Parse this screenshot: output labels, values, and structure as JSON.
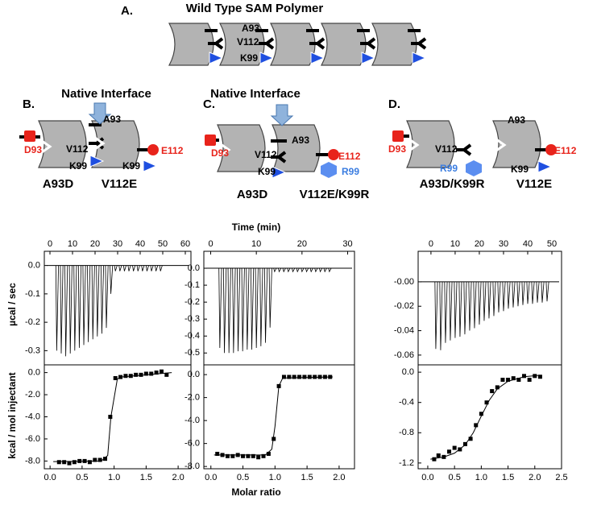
{
  "figure": {
    "a": {
      "label": "A.",
      "title": "Wild Type SAM Polymer",
      "residues": [
        "A93",
        "V112",
        "K99"
      ]
    },
    "b": {
      "label": "B.",
      "header": "Native Interface",
      "residues": [
        "D93",
        "A93",
        "V112",
        "K99",
        "K99",
        "E112"
      ],
      "names": [
        "A93D",
        "V112E"
      ]
    },
    "c": {
      "label": "C.",
      "header": "Native Interface",
      "residues": [
        "D93",
        "A93",
        "V112",
        "K99",
        "E112",
        "R99"
      ],
      "names": [
        "A93D",
        "V112E/K99R"
      ]
    },
    "d": {
      "label": "D.",
      "residues": [
        "D93",
        "V112",
        "R99",
        "A93",
        "K99",
        "E112"
      ],
      "names": [
        "A93D/K99R",
        "V112E"
      ]
    }
  },
  "axis_titles": {
    "time": "Time (min)",
    "power": "µcal / sec",
    "heat": "kcal / mol injectant",
    "ratio": "Molar ratio"
  },
  "chart_data": [
    {
      "type": "thermogram",
      "color": "#000000",
      "xaxis_position": "top",
      "x": [
        3,
        5,
        7,
        9,
        11,
        13,
        15,
        17,
        19,
        21,
        23,
        25,
        27,
        29,
        31,
        33,
        35,
        37,
        39,
        41,
        43,
        45,
        47,
        49
      ],
      "values": [
        -0.3,
        -0.31,
        -0.32,
        -0.31,
        -0.3,
        -0.29,
        -0.28,
        -0.27,
        -0.26,
        -0.25,
        -0.24,
        -0.22,
        -0.1,
        -0.02,
        -0.02,
        -0.02,
        -0.02,
        -0.02,
        -0.02,
        -0.02,
        -0.02,
        -0.02,
        -0.02,
        -0.02
      ],
      "xlim": [
        -2.5,
        62.5
      ],
      "xticks": [
        0,
        10,
        20,
        30,
        40,
        50,
        60
      ],
      "ylim": [
        -0.35,
        0.05
      ],
      "yticks": [
        {
          "value": 0,
          "label": "0.0"
        },
        -0.1,
        -0.2,
        -0.3
      ]
    },
    {
      "type": "thermogram",
      "color": "#000000",
      "xaxis_position": "top",
      "x": [
        2,
        3,
        4,
        5,
        6,
        7,
        8,
        9,
        10,
        11,
        12,
        13,
        14,
        15,
        16,
        17,
        18,
        19,
        20,
        21,
        22,
        23,
        24,
        25,
        26
      ],
      "values": [
        -0.47,
        -0.5,
        -0.5,
        -0.5,
        -0.49,
        -0.49,
        -0.48,
        -0.48,
        -0.47,
        -0.46,
        -0.44,
        -0.35,
        -0.02,
        -0.02,
        -0.02,
        -0.02,
        -0.02,
        -0.02,
        -0.02,
        -0.02,
        -0.02,
        -0.02,
        -0.02,
        -0.02,
        -0.02
      ],
      "xlim": [
        -1.5,
        31.5
      ],
      "xticks": [
        0,
        10,
        20,
        30
      ],
      "ylim": [
        -0.57,
        0.1
      ],
      "yticks": [
        {
          "value": 0,
          "label": "0.0"
        },
        -0.1,
        -0.2,
        -0.3,
        -0.4,
        -0.5
      ]
    },
    {
      "type": "thermogram",
      "color": "#000000",
      "xaxis_position": "top",
      "x": [
        2,
        4,
        6,
        8,
        10,
        12,
        14,
        16,
        18,
        20,
        22,
        24,
        26,
        28,
        30,
        32,
        34,
        36,
        38,
        40,
        42,
        44,
        46,
        48
      ],
      "values": [
        -0.055,
        -0.056,
        -0.05,
        -0.048,
        -0.046,
        -0.045,
        -0.043,
        -0.04,
        -0.038,
        -0.035,
        -0.032,
        -0.03,
        -0.028,
        -0.025,
        -0.024,
        -0.022,
        -0.021,
        -0.02,
        -0.019,
        -0.018,
        -0.018,
        -0.017,
        -0.017,
        -0.016
      ],
      "xlim": [
        -5.3,
        54
      ],
      "xticks": [
        0,
        10,
        20,
        30,
        40,
        50
      ],
      "ylim": [
        -0.068,
        0.025
      ],
      "yticks": [
        {
          "value": 0,
          "label": "-0.00"
        },
        -0.02,
        -0.04,
        -0.06
      ]
    },
    {
      "type": "scatter",
      "xaxis_position": "bottom",
      "series": [
        {
          "marker": "square",
          "color": "#000000",
          "x": [
            0.14,
            0.22,
            0.3,
            0.38,
            0.46,
            0.54,
            0.62,
            0.7,
            0.78,
            0.86,
            0.94,
            1.02,
            1.1,
            1.18,
            1.26,
            1.34,
            1.42,
            1.5,
            1.58,
            1.66,
            1.74,
            1.82
          ],
          "values": [
            -8.1,
            -8.1,
            -8.2,
            -8.1,
            -8.0,
            -8.0,
            -8.1,
            -7.9,
            -7.9,
            -7.8,
            -4.0,
            -0.5,
            -0.4,
            -0.3,
            -0.3,
            -0.2,
            -0.2,
            -0.1,
            -0.1,
            0,
            0.1,
            -0.2
          ]
        },
        {
          "marker": "none",
          "color": "#000000",
          "x": [
            0.05,
            0.8,
            0.9,
            0.95,
            1.05,
            1.1,
            1.9
          ],
          "values": [
            -8.05,
            -8.0,
            -7.5,
            -4.0,
            -0.6,
            -0.4,
            0
          ]
        }
      ],
      "xlim": [
        -0.09,
        2.2
      ],
      "xticks": [
        {
          "value": 0,
          "label": "0.0"
        },
        0.5,
        {
          "value": 1,
          "label": "1.0"
        },
        1.5,
        {
          "value": 2,
          "label": "2.0"
        }
      ],
      "ylim": [
        -8.7,
        0.7
      ],
      "yticks": [
        {
          "value": 0,
          "label": "0.0"
        },
        {
          "value": -2,
          "label": "-2.0"
        },
        {
          "value": -4,
          "label": "-4.0"
        },
        {
          "value": -6,
          "label": "-6.0"
        },
        {
          "value": -8,
          "label": "-8.0"
        }
      ]
    },
    {
      "type": "scatter",
      "xaxis_position": "bottom",
      "series": [
        {
          "marker": "square",
          "color": "#000000",
          "x": [
            0.1,
            0.18,
            0.26,
            0.34,
            0.42,
            0.5,
            0.58,
            0.66,
            0.74,
            0.82,
            0.9,
            0.98,
            1.06,
            1.14,
            1.22,
            1.3,
            1.38,
            1.46,
            1.54,
            1.62,
            1.7,
            1.78,
            1.86
          ],
          "values": [
            -6.9,
            -7.0,
            -7.1,
            -7.1,
            -7.0,
            -7.1,
            -7.1,
            -7.1,
            -7.2,
            -7.1,
            -6.9,
            -5.6,
            -1.0,
            -0.2,
            -0.2,
            -0.2,
            -0.2,
            -0.2,
            -0.2,
            -0.2,
            -0.2,
            -0.2,
            -0.2
          ]
        },
        {
          "marker": "none",
          "color": "#000000",
          "x": [
            0.05,
            0.85,
            0.95,
            1.0,
            1.06,
            1.12,
            1.9
          ],
          "values": [
            -7.0,
            -7.0,
            -6.5,
            -4.5,
            -1.0,
            -0.3,
            -0.2
          ]
        }
      ],
      "xlim": [
        -0.11,
        2.24
      ],
      "xticks": [
        {
          "value": 0,
          "label": "0.0"
        },
        0.5,
        {
          "value": 1,
          "label": "1.0"
        },
        1.5,
        {
          "value": 2,
          "label": "2.0"
        }
      ],
      "ylim": [
        -8.2,
        0.85
      ],
      "yticks": [
        {
          "value": 0,
          "label": "0.0"
        },
        {
          "value": -2,
          "label": "-2.0"
        },
        {
          "value": -4,
          "label": "-4.0"
        },
        {
          "value": -6,
          "label": "-6.0"
        },
        {
          "value": -8,
          "label": "-8.0"
        }
      ]
    },
    {
      "type": "scatter",
      "xaxis_position": "bottom",
      "series": [
        {
          "marker": "square",
          "color": "#000000",
          "x": [
            0.12,
            0.2,
            0.3,
            0.4,
            0.5,
            0.6,
            0.7,
            0.8,
            0.9,
            1.0,
            1.1,
            1.2,
            1.3,
            1.4,
            1.5,
            1.6,
            1.7,
            1.8,
            1.9,
            2.0,
            2.1
          ],
          "values": [
            -1.15,
            -1.1,
            -1.12,
            -1.05,
            -1.0,
            -1.02,
            -0.95,
            -0.88,
            -0.7,
            -0.55,
            -0.4,
            -0.25,
            -0.2,
            -0.1,
            -0.1,
            -0.08,
            -0.1,
            -0.05,
            -0.1,
            -0.05,
            -0.06
          ]
        },
        {
          "marker": "none",
          "color": "#000000",
          "x": [
            0.05,
            0.3,
            0.5,
            0.7,
            0.85,
            1.0,
            1.15,
            1.3,
            1.5,
            1.8,
            2.1
          ],
          "values": [
            -1.15,
            -1.12,
            -1.07,
            -0.96,
            -0.8,
            -0.58,
            -0.37,
            -0.22,
            -0.12,
            -0.06,
            -0.04
          ]
        }
      ],
      "xlim": [
        -0.18,
        2.5
      ],
      "xticks": [
        {
          "value": 0,
          "label": "0.0"
        },
        0.5,
        {
          "value": 1,
          "label": "1.0"
        },
        1.5,
        {
          "value": 2,
          "label": "2.0"
        },
        2.5
      ],
      "ylim": [
        -1.276,
        0.097
      ],
      "yticks": [
        {
          "value": 0,
          "label": "0.0"
        },
        -0.4,
        -0.8,
        -1.2
      ]
    }
  ]
}
